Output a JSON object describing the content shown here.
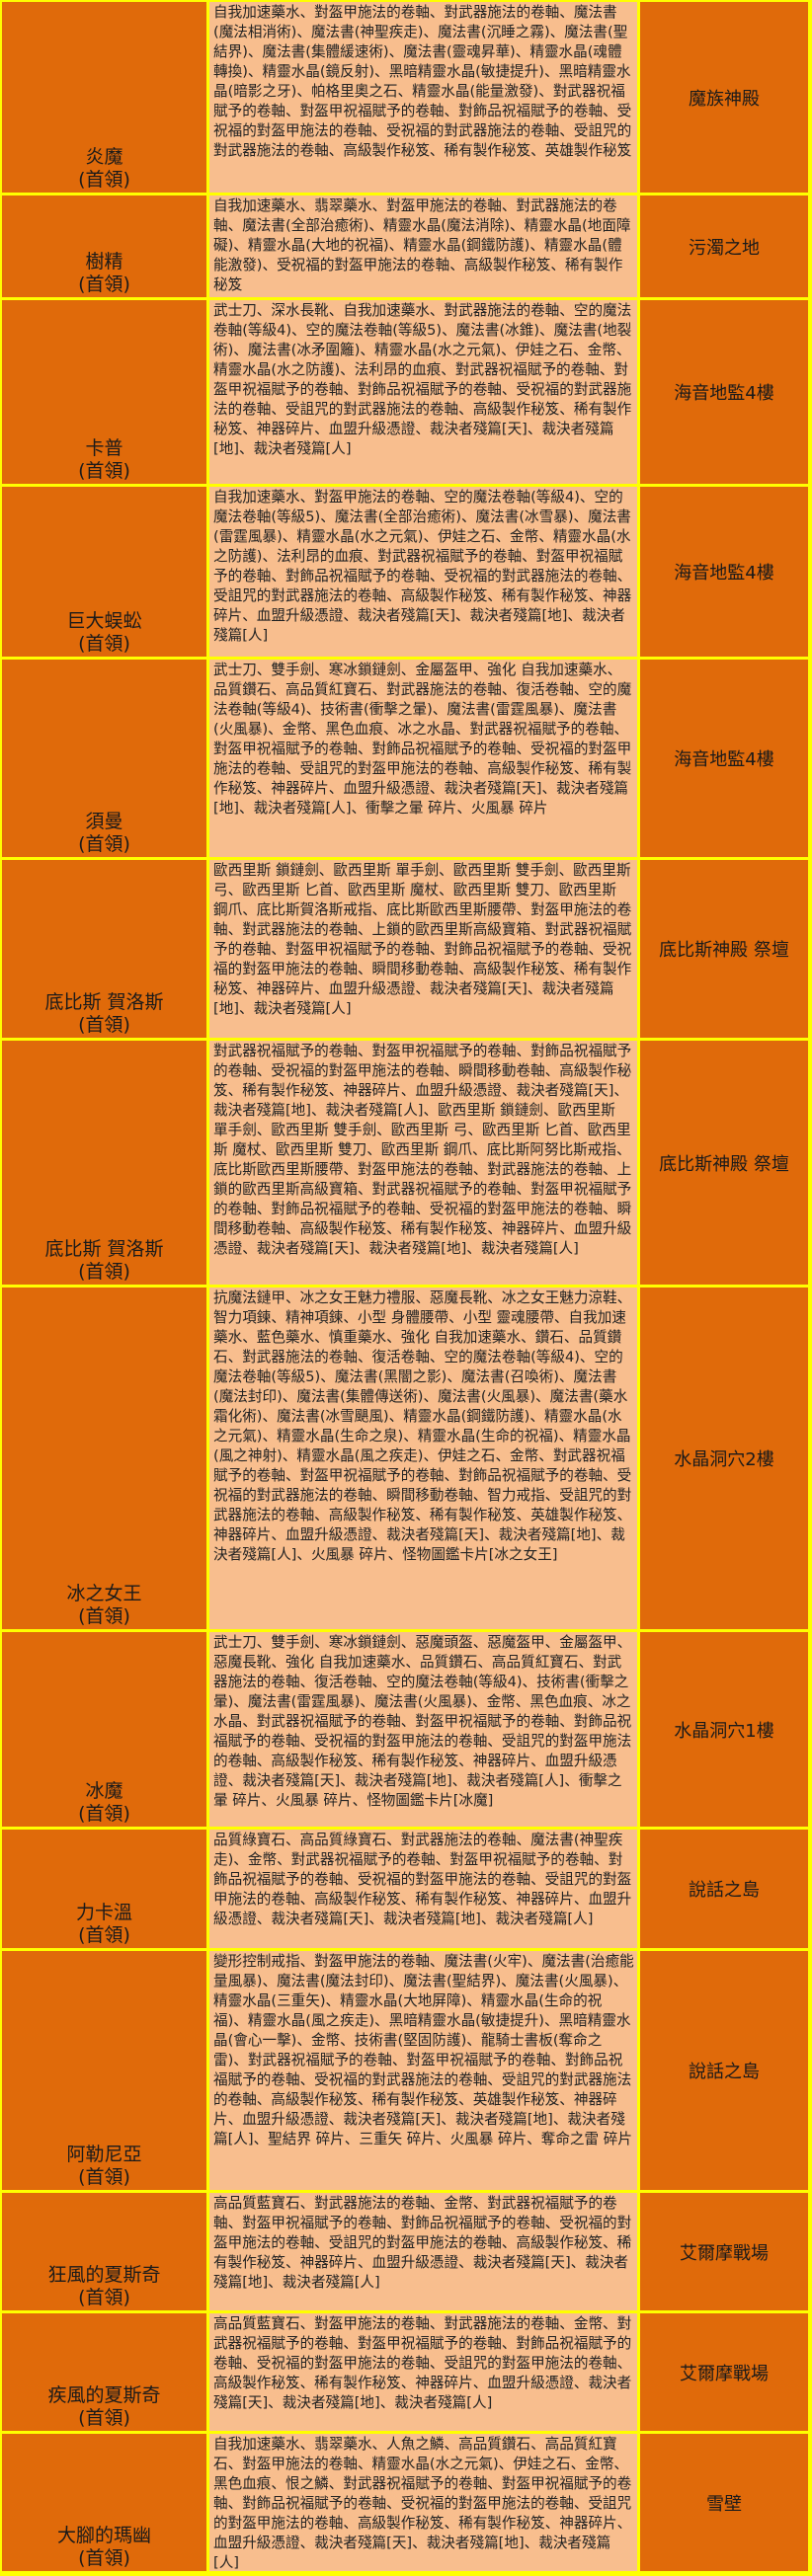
{
  "boss_suffix": "(首領)",
  "colors": {
    "boss_cell": "#E06A0A",
    "drops_cell": "#F8BE8E",
    "border": "#FFFF00",
    "text": "#222222"
  },
  "rows": [
    {
      "boss": "炎魔",
      "location": "魔族神殿",
      "drops": "自我加速藥水、對盔甲施法的卷軸、對武器施法的卷軸、魔法書(魔法相消術)、魔法書(神聖疾走)、魔法書(沉睡之霧)、魔法書(聖結界)、魔法書(集體緩速術)、魔法書(靈魂昇華)、精靈水晶(魂體轉換)、精靈水晶(鏡反射)、黑暗精靈水晶(敏捷提升)、黑暗精靈水晶(暗影之牙)、帕格里奧之石、精靈水晶(能量激發)、對武器祝福賦予的卷軸、對盔甲祝福賦予的卷軸、對飾品祝福賦予的卷軸、受祝福的對盔甲施法的卷軸、受祝福的對武器施法的卷軸、受詛咒的對武器施法的卷軸、高級製作秘笈、稀有製作秘笈、英雄製作秘笈"
    },
    {
      "boss": "樹精",
      "location": "污濁之地",
      "drops": "自我加速藥水、翡翠藥水、對盔甲施法的卷軸、對武器施法的卷軸、魔法書(全部治癒術)、精靈水晶(魔法消除)、精靈水晶(地面障礙)、精靈水晶(大地的祝福)、精靈水晶(鋼鐵防護)、精靈水晶(體能激發)、受祝福的對盔甲施法的卷軸、高級製作秘笈、稀有製作秘笈"
    },
    {
      "boss": "卡普",
      "location": "海音地監4樓",
      "drops": "武士刀、深水長靴、自我加速藥水、對武器施法的卷軸、空的魔法卷軸(等級4)、空的魔法卷軸(等級5)、魔法書(冰錐)、魔法書(地裂術)、魔法書(冰矛圍籬)、精靈水晶(水之元氣)、伊娃之石、金幣、精靈水晶(水之防護)、法利昂的血痕、對武器祝福賦予的卷軸、對盔甲祝福賦予的卷軸、對飾品祝福賦予的卷軸、受祝福的對武器施法的卷軸、受詛咒的對武器施法的卷軸、高級製作秘笈、稀有製作秘笈、神器碎片、血盟升級憑證、裁決者殘篇[天]、裁決者殘篇[地]、裁決者殘篇[人]"
    },
    {
      "boss": "巨大蜈蚣",
      "location": "海音地監4樓",
      "drops": "自我加速藥水、對盔甲施法的卷軸、空的魔法卷軸(等級4)、空的魔法卷軸(等級5)、魔法書(全部治癒術)、魔法書(冰雪暴)、魔法書(雷霆風暴)、精靈水晶(水之元氣)、伊娃之石、金幣、精靈水晶(水之防護)、法利昂的血痕、對武器祝福賦予的卷軸、對盔甲祝福賦予的卷軸、對飾品祝福賦予的卷軸、受祝福的對武器施法的卷軸、受詛咒的對武器施法的卷軸、高級製作秘笈、稀有製作秘笈、神器碎片、血盟升級憑證、裁決者殘篇[天]、裁決者殘篇[地]、裁決者殘篇[人]"
    },
    {
      "boss": "須曼",
      "location": "海音地監4樓",
      "drops": "武士刀、雙手劍、寒冰鎖鏈劍、金屬盔甲、強化 自我加速藥水、品質鑽石、高品質紅寶石、對武器施法的卷軸、復活卷軸、空的魔法卷軸(等級4)、技術書(衝擊之暈)、魔法書(雷霆風暴)、魔法書(火風暴)、金幣、黑色血痕、冰之水晶、對武器祝福賦予的卷軸、對盔甲祝福賦予的卷軸、對飾品祝福賦予的卷軸、受祝福的對盔甲施法的卷軸、受詛咒的對盔甲施法的卷軸、高級製作秘笈、稀有製作秘笈、神器碎片、血盟升級憑證、裁決者殘篇[天]、裁決者殘篇[地]、裁決者殘篇[人]、衝擊之暈 碎片、火風暴 碎片"
    },
    {
      "boss": "底比斯 賀洛斯",
      "location": "底比斯神殿 祭壇",
      "drops": "歐西里斯 鎖鏈劍、歐西里斯 單手劍、歐西里斯 雙手劍、歐西里斯 弓、歐西里斯 匕首、歐西里斯 魔杖、歐西里斯 雙刀、歐西里斯 鋼爪、底比斯賀洛斯戒指、底比斯歐西里斯腰帶、對盔甲施法的卷軸、對武器施法的卷軸、上鎖的歐西里斯高級寶箱、對武器祝福賦予的卷軸、對盔甲祝福賦予的卷軸、對飾品祝福賦予的卷軸、受祝福的對盔甲施法的卷軸、瞬間移動卷軸、高級製作秘笈、稀有製作秘笈、神器碎片、血盟升級憑證、裁決者殘篇[天]、裁決者殘篇[地]、裁決者殘篇[人]"
    },
    {
      "boss": "底比斯 賀洛斯",
      "location": "底比斯神殿 祭壇",
      "drops": "對武器祝福賦予的卷軸、對盔甲祝福賦予的卷軸、對飾品祝福賦予的卷軸、受祝福的對盔甲施法的卷軸、瞬間移動卷軸、高級製作秘笈、稀有製作秘笈、神器碎片、血盟升級憑證、裁決者殘篇[天]、裁決者殘篇[地]、裁決者殘篇[人]、歐西里斯 鎖鏈劍、歐西里斯 單手劍、歐西里斯 雙手劍、歐西里斯 弓、歐西里斯 匕首、歐西里斯 魔杖、歐西里斯 雙刀、歐西里斯 鋼爪、底比斯阿努比斯戒指、底比斯歐西里斯腰帶、對盔甲施法的卷軸、對武器施法的卷軸、上鎖的歐西里斯高級寶箱、對武器祝福賦予的卷軸、對盔甲祝福賦予的卷軸、對飾品祝福賦予的卷軸、受祝福的對盔甲施法的卷軸、瞬間移動卷軸、高級製作秘笈、稀有製作秘笈、神器碎片、血盟升級憑證、裁決者殘篇[天]、裁決者殘篇[地]、裁決者殘篇[人]"
    },
    {
      "boss": "冰之女王",
      "location": "水晶洞穴2樓",
      "drops": "抗魔法鏈甲、冰之女王魅力禮服、惡魔長靴、冰之女王魅力涼鞋、智力項鍊、精神項鍊、小型 身體腰帶、小型 靈魂腰帶、自我加速藥水、藍色藥水、慎重藥水、強化 自我加速藥水、鑽石、品質鑽石、對武器施法的卷軸、復活卷軸、空的魔法卷軸(等級4)、空的魔法卷軸(等級5)、魔法書(黑闇之影)、魔法書(召喚術)、魔法書(魔法封印)、魔法書(集體傳送術)、魔法書(火風暴)、魔法書(藥水霜化術)、魔法書(冰雪颶風)、精靈水晶(鋼鐵防護)、精靈水晶(水之元氣)、精靈水晶(生命之泉)、精靈水晶(生命的祝福)、精靈水晶(風之神射)、精靈水晶(風之疾走)、伊娃之石、金幣、對武器祝福賦予的卷軸、對盔甲祝福賦予的卷軸、對飾品祝福賦予的卷軸、受祝福的對武器施法的卷軸、瞬間移動卷軸、智力戒指、受詛咒的對武器施法的卷軸、高級製作秘笈、稀有製作秘笈、英雄製作秘笈、神器碎片、血盟升級憑證、裁決者殘篇[天]、裁決者殘篇[地]、裁決者殘篇[人]、火風暴 碎片、怪物圖鑑卡片[冰之女王]"
    },
    {
      "boss": "冰魔",
      "location": "水晶洞穴1樓",
      "drops": "武士刀、雙手劍、寒冰鎖鏈劍、惡魔頭盔、惡魔盔甲、金屬盔甲、惡魔長靴、強化 自我加速藥水、品質鑽石、高品質紅寶石、對武器施法的卷軸、復活卷軸、空的魔法卷軸(等級4)、技術書(衝擊之暈)、魔法書(雷霆風暴)、魔法書(火風暴)、金幣、黑色血痕、冰之水晶、對武器祝福賦予的卷軸、對盔甲祝福賦予的卷軸、對飾品祝福賦予的卷軸、受祝福的對盔甲施法的卷軸、受詛咒的對盔甲施法的卷軸、高級製作秘笈、稀有製作秘笈、神器碎片、血盟升級憑證、裁決者殘篇[天]、裁決者殘篇[地]、裁決者殘篇[人]、衝擊之暈 碎片、火風暴 碎片、怪物圖鑑卡片[冰魔]"
    },
    {
      "boss": "力卡溫",
      "location": "說話之島",
      "drops": "品質綠寶石、高品質綠寶石、對武器施法的卷軸、魔法書(神聖疾走)、金幣、對武器祝福賦予的卷軸、對盔甲祝福賦予的卷軸、對飾品祝福賦予的卷軸、受祝福的對盔甲施法的卷軸、受詛咒的對盔甲施法的卷軸、高級製作秘笈、稀有製作秘笈、神器碎片、血盟升級憑證、裁決者殘篇[天]、裁決者殘篇[地]、裁決者殘篇[人]"
    },
    {
      "boss": "阿勒尼亞",
      "location": "說話之島",
      "drops": "變形控制戒指、對盔甲施法的卷軸、魔法書(火牢)、魔法書(治癒能量風暴)、魔法書(魔法封印)、魔法書(聖結界)、魔法書(火風暴)、精靈水晶(三重矢)、精靈水晶(大地屏障)、精靈水晶(生命的祝福)、精靈水晶(風之疾走)、黑暗精靈水晶(敏捷提升)、黑暗精靈水晶(會心一擊)、金幣、技術書(堅固防護)、龍騎士書板(奪命之雷)、對武器祝福賦予的卷軸、對盔甲祝福賦予的卷軸、對飾品祝福賦予的卷軸、受祝福的對武器施法的卷軸、受詛咒的對武器施法的卷軸、高級製作秘笈、稀有製作秘笈、英雄製作秘笈、神器碎片、血盟升級憑證、裁決者殘篇[天]、裁決者殘篇[地]、裁決者殘篇[人]、聖結界 碎片、三重矢 碎片、火風暴 碎片、奪命之雷 碎片"
    },
    {
      "boss": "狂風的夏斯奇",
      "location": "艾爾摩戰場",
      "drops": "高品質藍寶石、對武器施法的卷軸、金幣、對武器祝福賦予的卷軸、對盔甲祝福賦予的卷軸、對飾品祝福賦予的卷軸、受祝福的對盔甲施法的卷軸、受詛咒的對盔甲施法的卷軸、高級製作秘笈、稀有製作秘笈、神器碎片、血盟升級憑證、裁決者殘篇[天]、裁決者殘篇[地]、裁決者殘篇[人]"
    },
    {
      "boss": "疾風的夏斯奇",
      "location": "艾爾摩戰場",
      "drops": "高品質藍寶石、對盔甲施法的卷軸、對武器施法的卷軸、金幣、對武器祝福賦予的卷軸、對盔甲祝福賦予的卷軸、對飾品祝福賦予的卷軸、受祝福的對盔甲施法的卷軸、受詛咒的對盔甲施法的卷軸、高級製作秘笈、稀有製作秘笈、神器碎片、血盟升級憑證、裁決者殘篇[天]、裁決者殘篇[地]、裁決者殘篇[人]"
    },
    {
      "boss": "大腳的瑪幽",
      "location": "雪壁",
      "drops": "自我加速藥水、翡翠藥水、人魚之鱗、高品質鑽石、高品質紅寶石、對盔甲施法的卷軸、精靈水晶(水之元氣)、伊娃之石、金幣、黑色血痕、恨之鱗、對武器祝福賦予的卷軸、對盔甲祝福賦予的卷軸、對飾品祝福賦予的卷軸、受祝福的對盔甲施法的卷軸、受詛咒的對盔甲施法的卷軸、高級製作秘笈、稀有製作秘笈、神器碎片、血盟升級憑證、裁決者殘篇[天]、裁決者殘篇[地]、裁決者殘篇[人]"
    }
  ]
}
